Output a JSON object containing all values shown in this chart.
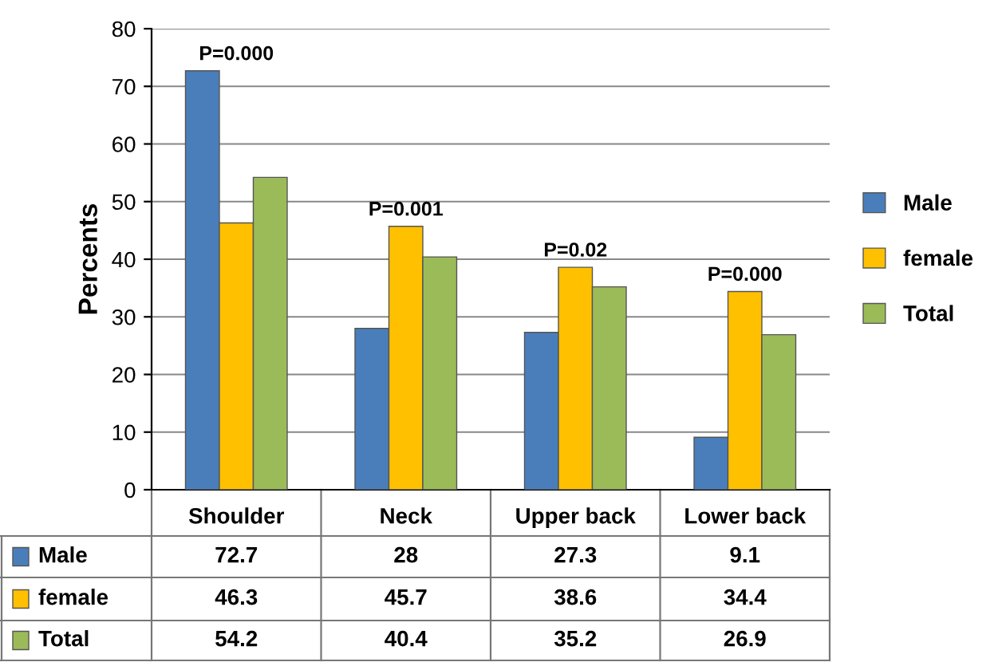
{
  "chart_data": {
    "type": "bar",
    "ylabel": "Percents",
    "categories": [
      "Shoulder",
      "Neck",
      "Upper back",
      "Lower back"
    ],
    "series": [
      {
        "name": "Male",
        "color": "#4a7ebb",
        "values": [
          72.7,
          28,
          27.3,
          9.1
        ]
      },
      {
        "name": "female",
        "color": "#ffc000",
        "values": [
          46.3,
          45.7,
          38.6,
          34.4
        ]
      },
      {
        "name": "Total",
        "color": "#9bbb59",
        "values": [
          54.2,
          40.4,
          35.2,
          26.9
        ]
      }
    ],
    "annotations": [
      "P=0.000",
      "P=0.001",
      "P=0.02",
      "P=0.000"
    ],
    "ylim": [
      0,
      80
    ],
    "yticks": [
      0,
      10,
      20,
      30,
      40,
      50,
      60,
      70,
      80
    ],
    "grid": "y",
    "legend": "right",
    "data_labels": true
  }
}
